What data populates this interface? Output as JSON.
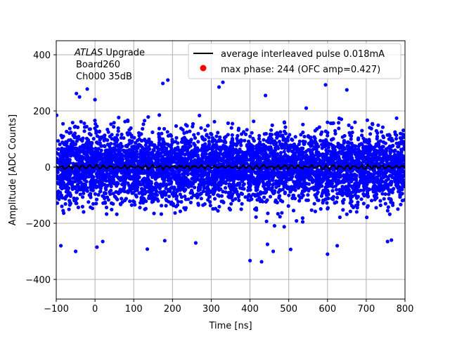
{
  "chart_data": {
    "type": "scatter",
    "xlabel": "Time [ns]",
    "ylabel": "Amplitude [ADC Counts]",
    "xlim": [
      -100,
      800
    ],
    "ylim": [
      -470,
      450
    ],
    "x_ticks": [
      -100,
      0,
      100,
      200,
      300,
      400,
      500,
      600,
      700,
      800
    ],
    "x_tick_labels": [
      "−100",
      "0",
      "100",
      "200",
      "300",
      "400",
      "500",
      "600",
      "700",
      "800"
    ],
    "y_ticks": [
      -400,
      -200,
      0,
      200,
      400
    ],
    "y_tick_labels": [
      "−400",
      "−200",
      "0",
      "200",
      "400"
    ],
    "grid": true,
    "legend_position": "top-right",
    "annotation": {
      "italic": "ATLAS",
      "line1_rest": "Upgrade",
      "line2": "Board260",
      "line3": "Ch000 35dB"
    },
    "series": [
      {
        "name": "average interleaved pulse 0.018mA",
        "kind": "line",
        "color": "#000000",
        "x_range": [
          -100,
          800
        ],
        "mean": 0,
        "approx_ripple": 8
      },
      {
        "name": "max phase: 244 (OFC amp=0.427)",
        "kind": "marker",
        "color": "#ff0000",
        "points": []
      },
      {
        "name": "",
        "kind": "scatter",
        "color": "#0000ff",
        "x_range": [
          -100,
          800
        ],
        "dense_band": [
          -150,
          150
        ],
        "outliers": [
          {
            "x": -48,
            "y": 262
          },
          {
            "x": -40,
            "y": 250
          },
          {
            "x": -20,
            "y": 278
          },
          {
            "x": 0,
            "y": 240
          },
          {
            "x": 175,
            "y": 298
          },
          {
            "x": 188,
            "y": 310
          },
          {
            "x": 330,
            "y": 302
          },
          {
            "x": 320,
            "y": 285
          },
          {
            "x": 595,
            "y": 293
          },
          {
            "x": 650,
            "y": 275
          },
          {
            "x": 440,
            "y": 255
          },
          {
            "x": 545,
            "y": 210
          },
          {
            "x": -88,
            "y": -280
          },
          {
            "x": -50,
            "y": -300
          },
          {
            "x": 5,
            "y": -285
          },
          {
            "x": 20,
            "y": -265
          },
          {
            "x": 135,
            "y": -292
          },
          {
            "x": 180,
            "y": -262
          },
          {
            "x": 400,
            "y": -333
          },
          {
            "x": 430,
            "y": -337
          },
          {
            "x": 445,
            "y": -275
          },
          {
            "x": 460,
            "y": -300
          },
          {
            "x": 505,
            "y": -293
          },
          {
            "x": 600,
            "y": -310
          },
          {
            "x": 625,
            "y": -280
          },
          {
            "x": 755,
            "y": -265
          },
          {
            "x": 765,
            "y": -260
          },
          {
            "x": 260,
            "y": -270
          }
        ]
      }
    ]
  }
}
